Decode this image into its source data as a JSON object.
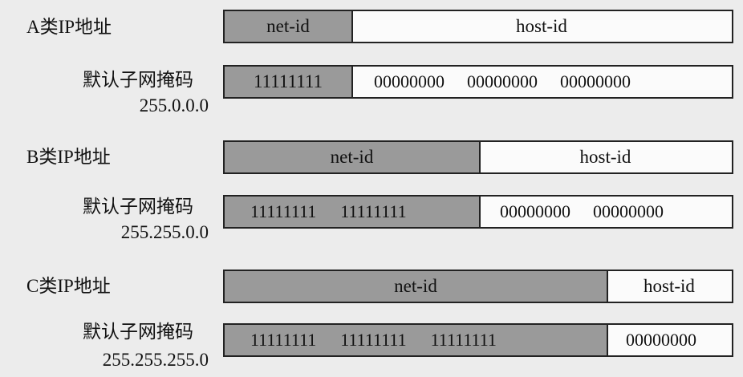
{
  "classes": [
    {
      "title": "A类IP地址",
      "net_label": "net-id",
      "host_label": "host-id",
      "mask_label": "默认子网掩码",
      "mask_value": "255.0.0.0",
      "net_octets": [
        "11111111"
      ],
      "host_octets": [
        "00000000",
        "00000000",
        "00000000"
      ]
    },
    {
      "title": "B类IP地址",
      "net_label": "net-id",
      "host_label": "host-id",
      "mask_label": "默认子网掩码",
      "mask_value": "255.255.0.0",
      "net_octets": [
        "11111111",
        "11111111"
      ],
      "host_octets": [
        "00000000",
        "00000000"
      ]
    },
    {
      "title": "C类IP地址",
      "net_label": "net-id",
      "host_label": "host-id",
      "mask_label": "默认子网掩码",
      "mask_value": "255.255.255.0",
      "net_octets": [
        "11111111",
        "11111111",
        "11111111"
      ],
      "host_octets": [
        "00000000"
      ]
    }
  ]
}
